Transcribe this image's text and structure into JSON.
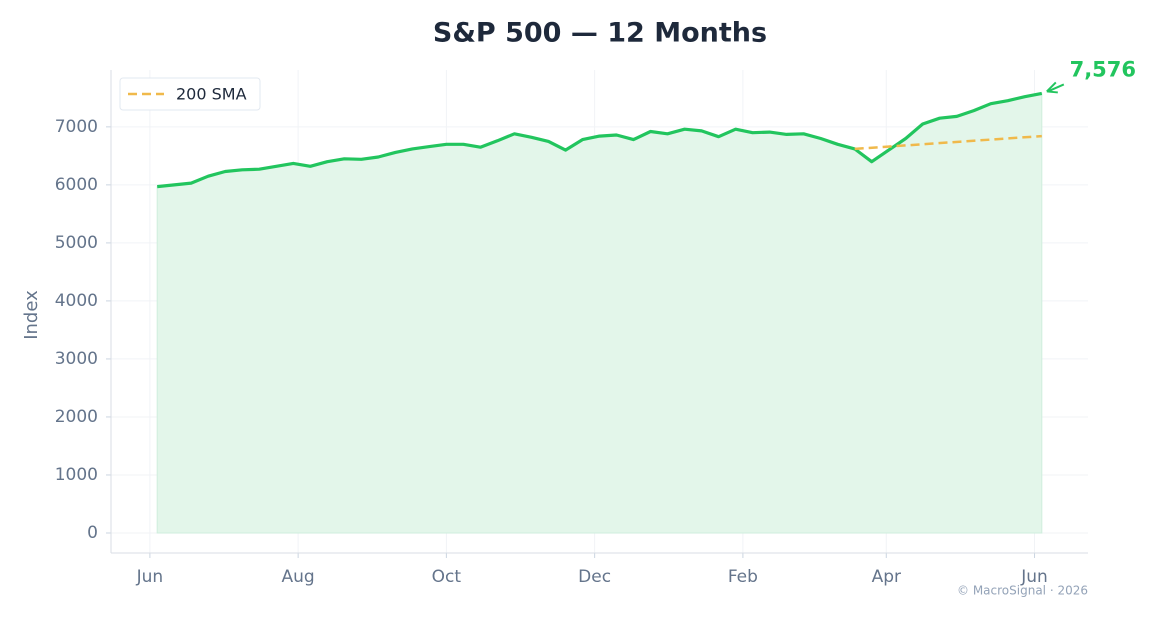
{
  "chart_data": {
    "type": "line",
    "title": "S&P 500 — 12 Months",
    "ylabel": "Index",
    "xlim": [
      -16,
      386
    ],
    "xticks": [
      {
        "value": 0,
        "label": "Jun"
      },
      {
        "value": 61,
        "label": "Aug"
      },
      {
        "value": 122,
        "label": "Oct"
      },
      {
        "value": 183,
        "label": "Dec"
      },
      {
        "value": 244,
        "label": "Feb"
      },
      {
        "value": 303,
        "label": "Apr"
      },
      {
        "value": 364,
        "label": "Jun"
      }
    ],
    "ylim": [
      -345,
      7980
    ],
    "yticks": [
      0,
      1000,
      2000,
      3000,
      4000,
      5000,
      6000,
      7000
    ],
    "grid": true,
    "legend": "upper left",
    "series": [
      {
        "color": "#22c55e",
        "area_color": "#e3f6ea",
        "x": [
          3,
          10,
          17,
          24,
          31,
          38,
          45,
          52,
          59,
          66,
          73,
          80,
          87,
          94,
          101,
          108,
          115,
          122,
          129,
          136,
          143,
          150,
          157,
          164,
          171,
          178,
          185,
          192,
          199,
          206,
          213,
          220,
          227,
          234,
          241,
          248,
          255,
          262,
          269,
          276,
          283,
          290,
          297,
          304,
          311,
          318,
          325,
          332,
          339,
          346,
          353,
          360,
          367
        ],
        "values": [
          5970,
          6000,
          6030,
          6150,
          6230,
          6260,
          6270,
          6320,
          6370,
          6320,
          6400,
          6450,
          6440,
          6480,
          6560,
          6620,
          6660,
          6700,
          6700,
          6650,
          6760,
          6880,
          6820,
          6750,
          6600,
          6780,
          6840,
          6860,
          6780,
          6920,
          6880,
          6960,
          6930,
          6830,
          6960,
          6900,
          6910,
          6870,
          6880,
          6800,
          6700,
          6620,
          6400,
          6600,
          6800,
          7050,
          7150,
          7180,
          7280,
          7400,
          7450,
          7520,
          7576
        ]
      },
      {
        "name": "200 SMA",
        "color": "#f0b94b",
        "dashed": true,
        "x": [
          290,
          367
        ],
        "values": [
          6620,
          6840
        ]
      }
    ],
    "annotation": {
      "label": "7,576",
      "value": 7576,
      "x": 367,
      "color": "#22c55e"
    },
    "footer": "© MacroSignal · 2026"
  }
}
